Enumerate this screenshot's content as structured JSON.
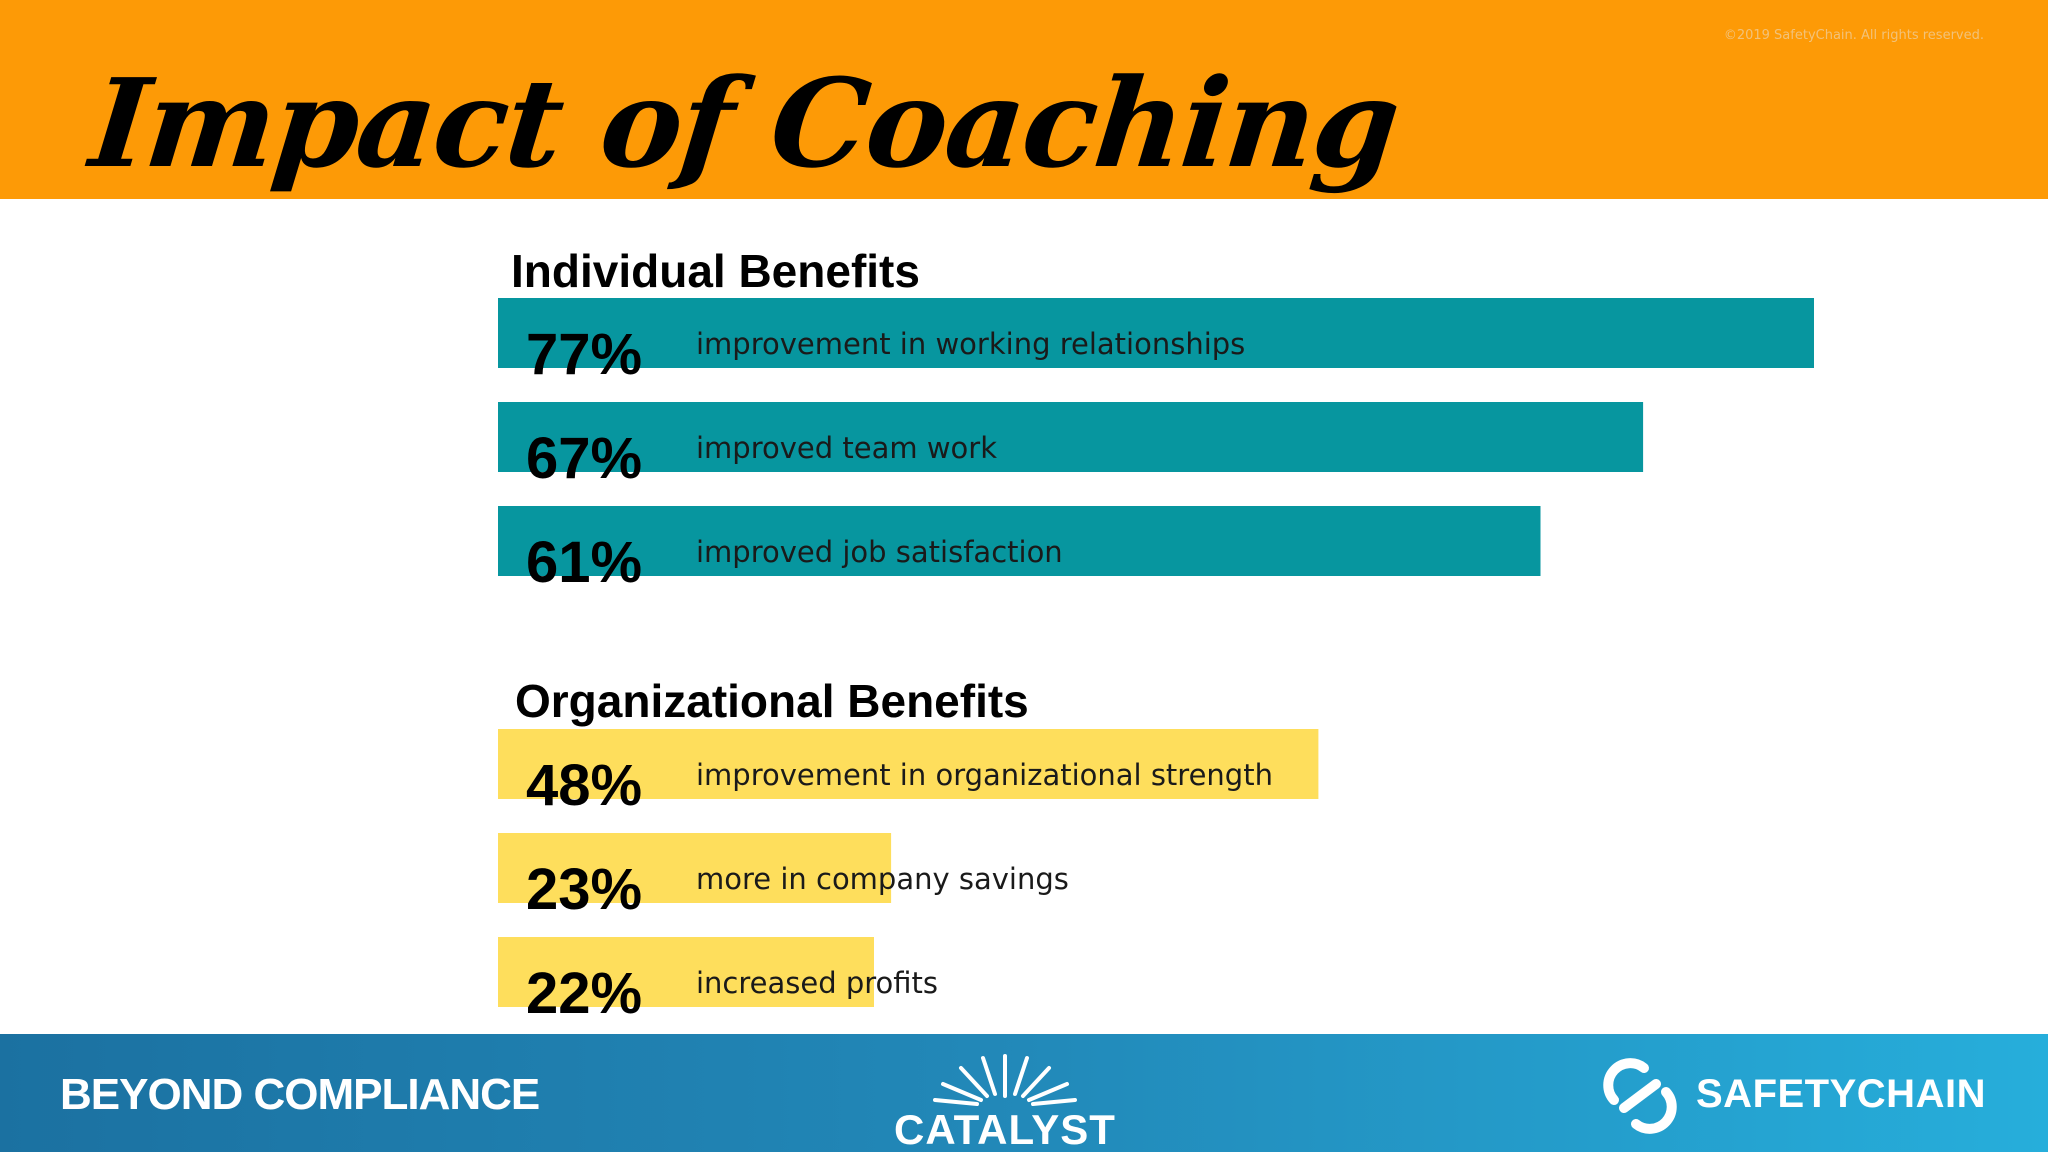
{
  "slide": {
    "title": "Impact of Coaching",
    "copyright": "©2019 SafetyChain. All rights reserved."
  },
  "sections": {
    "individual_title": "Individual Benefits",
    "organizational_title": "Organizational Benefits"
  },
  "chart_data": {
    "type": "bar",
    "orientation": "horizontal",
    "title": "Impact of Coaching",
    "units": "%",
    "series": [
      {
        "name": "Individual Benefits",
        "color": "#07969f",
        "items": [
          {
            "value": 77,
            "display": "77%",
            "label": "improvement in working relationships"
          },
          {
            "value": 67,
            "display": "67%",
            "label": "improved team work"
          },
          {
            "value": 61,
            "display": "61%",
            "label": "improved job satisfaction"
          }
        ]
      },
      {
        "name": "Organizational Benefits",
        "color": "#fede5c",
        "items": [
          {
            "value": 48,
            "display": "48%",
            "label": "improvement in organizational strength"
          },
          {
            "value": 23,
            "display": "23%",
            "label": "more in company savings"
          },
          {
            "value": 22,
            "display": "22%",
            "label": "increased profits"
          }
        ]
      }
    ]
  },
  "footer": {
    "left_text": "BEYOND COMPLIANCE",
    "center_logo": "CATALYST",
    "right_logo": "SAFETYCHAIN",
    "center_icon": "sunburst-icon",
    "right_icon": "chain-link-icon"
  }
}
